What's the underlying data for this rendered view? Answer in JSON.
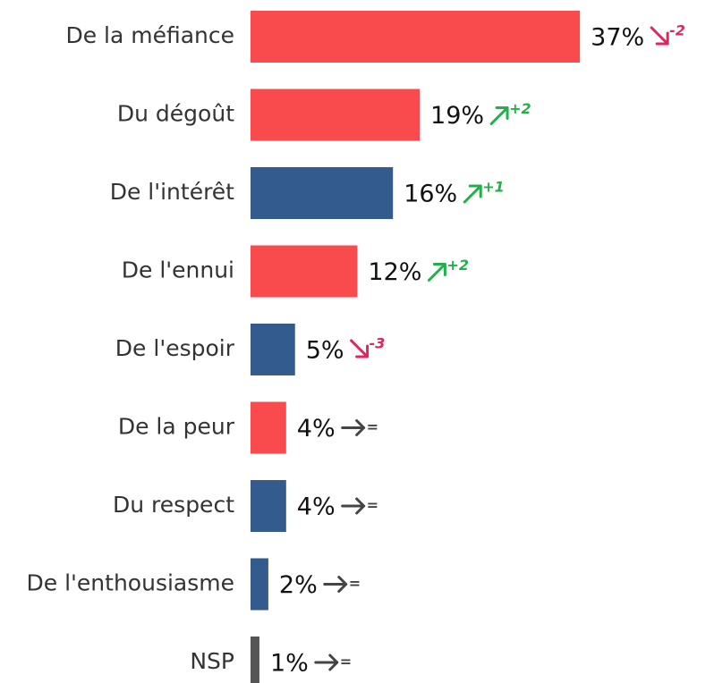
{
  "chart_data": {
    "type": "bar",
    "orientation": "horizontal",
    "categories": [
      "De la méfiance",
      "Du dégoût",
      "De l'intérêt",
      "De l'ennui",
      "De l'espoir",
      "De la peur",
      "Du respect",
      "De l'enthousiasme",
      "NSP"
    ],
    "values": [
      37,
      19,
      16,
      12,
      5,
      4,
      4,
      2,
      1
    ],
    "value_labels": [
      "37%",
      "19%",
      "16%",
      "12%",
      "5%",
      "4%",
      "4%",
      "2%",
      "1%"
    ],
    "colors": [
      "#f94a4d",
      "#f94a4d",
      "#335b8e",
      "#f94a4d",
      "#335b8e",
      "#f94a4d",
      "#335b8e",
      "#335b8e",
      "#555555"
    ],
    "changes": [
      "-2",
      "+2",
      "+1",
      "+2",
      "-3",
      "=",
      "=",
      "=",
      "="
    ]
  }
}
